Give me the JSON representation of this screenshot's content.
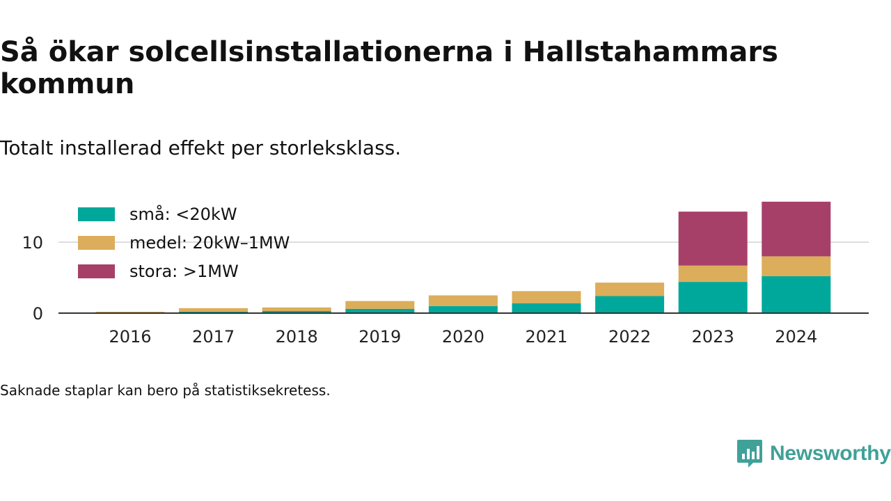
{
  "header": {
    "title": "Så ökar solcellsinstallationerna i Hallstahammars kommun",
    "subtitle": "Totalt installerad effekt per storleksklass."
  },
  "footer": {
    "note": "Saknade staplar kan bero på statistiksekretess.",
    "brand": "Newsworthy"
  },
  "colors": {
    "sma": "#00a89b",
    "medel": "#dcad5a",
    "stora": "#a64069",
    "grid": "#dddddd",
    "axis": "#333333",
    "brand": "#3fa198"
  },
  "icons": {
    "brand_logo": "chat-bar-chart-icon"
  },
  "chart_data": {
    "type": "bar",
    "stacked": true,
    "categories": [
      "2016",
      "2017",
      "2018",
      "2019",
      "2020",
      "2021",
      "2022",
      "2023",
      "2024"
    ],
    "series": [
      {
        "name": "små: <20kW",
        "color": "#00a89b",
        "values": [
          0.1,
          0.2,
          0.3,
          0.6,
          1.0,
          1.4,
          2.4,
          4.4,
          5.2
        ]
      },
      {
        "name": "medel: 20kW–1MW",
        "color": "#dcad5a",
        "values": [
          0.1,
          0.5,
          0.5,
          1.1,
          1.5,
          1.7,
          1.9,
          2.3,
          2.8
        ]
      },
      {
        "name": "stora: >1MW",
        "color": "#a64069",
        "values": [
          0,
          0,
          0,
          0,
          0,
          0,
          0,
          7.6,
          7.7
        ]
      }
    ],
    "y_ticks": [
      0,
      10
    ],
    "ylim": [
      0,
      16
    ],
    "grid": true,
    "legend_position": "top-left"
  }
}
